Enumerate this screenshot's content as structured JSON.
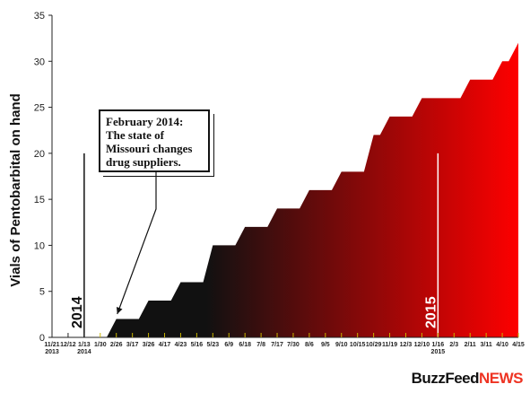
{
  "chart_data": {
    "type": "area",
    "ylabel": "Vials of Pentobarbital on hand",
    "ylim": [
      0,
      35
    ],
    "yticks": [
      0,
      5,
      10,
      15,
      20,
      25,
      30,
      35
    ],
    "grid": false,
    "legend": "none",
    "categories": [
      [
        "11/21",
        "2013"
      ],
      [
        "12/12",
        ""
      ],
      [
        "1/13",
        "2014"
      ],
      [
        "1/30",
        ""
      ],
      [
        "2/26",
        ""
      ],
      [
        "3/17",
        ""
      ],
      [
        "3/26",
        ""
      ],
      [
        "4/17",
        ""
      ],
      [
        "4/23",
        ""
      ],
      [
        "5/16",
        ""
      ],
      [
        "5/23",
        ""
      ],
      [
        "6/9",
        ""
      ],
      [
        "6/18",
        ""
      ],
      [
        "7/8",
        ""
      ],
      [
        "7/17",
        ""
      ],
      [
        "7/30",
        ""
      ],
      [
        "8/6",
        ""
      ],
      [
        "9/5",
        ""
      ],
      [
        "9/10",
        ""
      ],
      [
        "10/15",
        ""
      ],
      [
        "10/29",
        ""
      ],
      [
        "11/19",
        ""
      ],
      [
        "12/3",
        ""
      ],
      [
        "12/10",
        ""
      ],
      [
        "1/16",
        "2015"
      ],
      [
        "2/3",
        ""
      ],
      [
        "2/11",
        ""
      ],
      [
        "3/11",
        ""
      ],
      [
        "4/10",
        ""
      ],
      [
        "4/15",
        ""
      ]
    ],
    "series": [
      {
        "values": [
          null,
          null,
          null,
          0,
          2,
          2,
          4,
          4,
          6,
          6,
          10,
          10,
          12,
          12,
          14,
          14,
          16,
          16,
          18,
          18,
          22,
          24,
          24,
          26,
          26,
          26,
          28,
          28,
          30,
          32
        ]
      }
    ],
    "vertical_markers": [
      {
        "label": "2014",
        "at_category": "1/13"
      },
      {
        "label": "2015",
        "at_category": "1/16"
      }
    ],
    "annotation": {
      "lines": [
        "February 2014:",
        "The state of",
        "Missouri changes",
        "drug suppliers."
      ],
      "points_to_category": "2/26"
    },
    "colors": {
      "start": "#111111",
      "end": "#ff0000",
      "tick_accent": "#c8b400"
    }
  },
  "logo": {
    "part1": "BuzzFeed",
    "part2": "NEWS"
  }
}
